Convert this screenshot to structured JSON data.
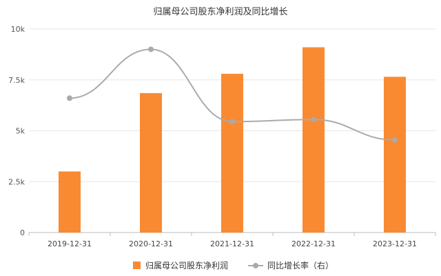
{
  "chart_data": {
    "type": "bar",
    "title": "归属母公司股东净利润及同比增长",
    "categories": [
      "2019-12-31",
      "2020-12-31",
      "2021-12-31",
      "2022-12-31",
      "2023-12-31"
    ],
    "ylim": [
      0,
      10000
    ],
    "yticks": [
      {
        "value": 0,
        "label": "0"
      },
      {
        "value": 2500,
        "label": "2.5k"
      },
      {
        "value": 5000,
        "label": "5k"
      },
      {
        "value": 7500,
        "label": "7.5k"
      },
      {
        "value": 10000,
        "label": "10k"
      }
    ],
    "grid": true,
    "legend_position": "bottom",
    "series": [
      {
        "name": "归属母公司股东净利润",
        "type": "bar",
        "color": "#F98A31",
        "values": [
          3000,
          6850,
          7800,
          9100,
          7650
        ]
      },
      {
        "name": "同比增长率（右）",
        "type": "line",
        "color": "#AAAAAA",
        "smooth": true,
        "values": [
          6600,
          9000,
          5450,
          5550,
          4550
        ]
      }
    ]
  }
}
